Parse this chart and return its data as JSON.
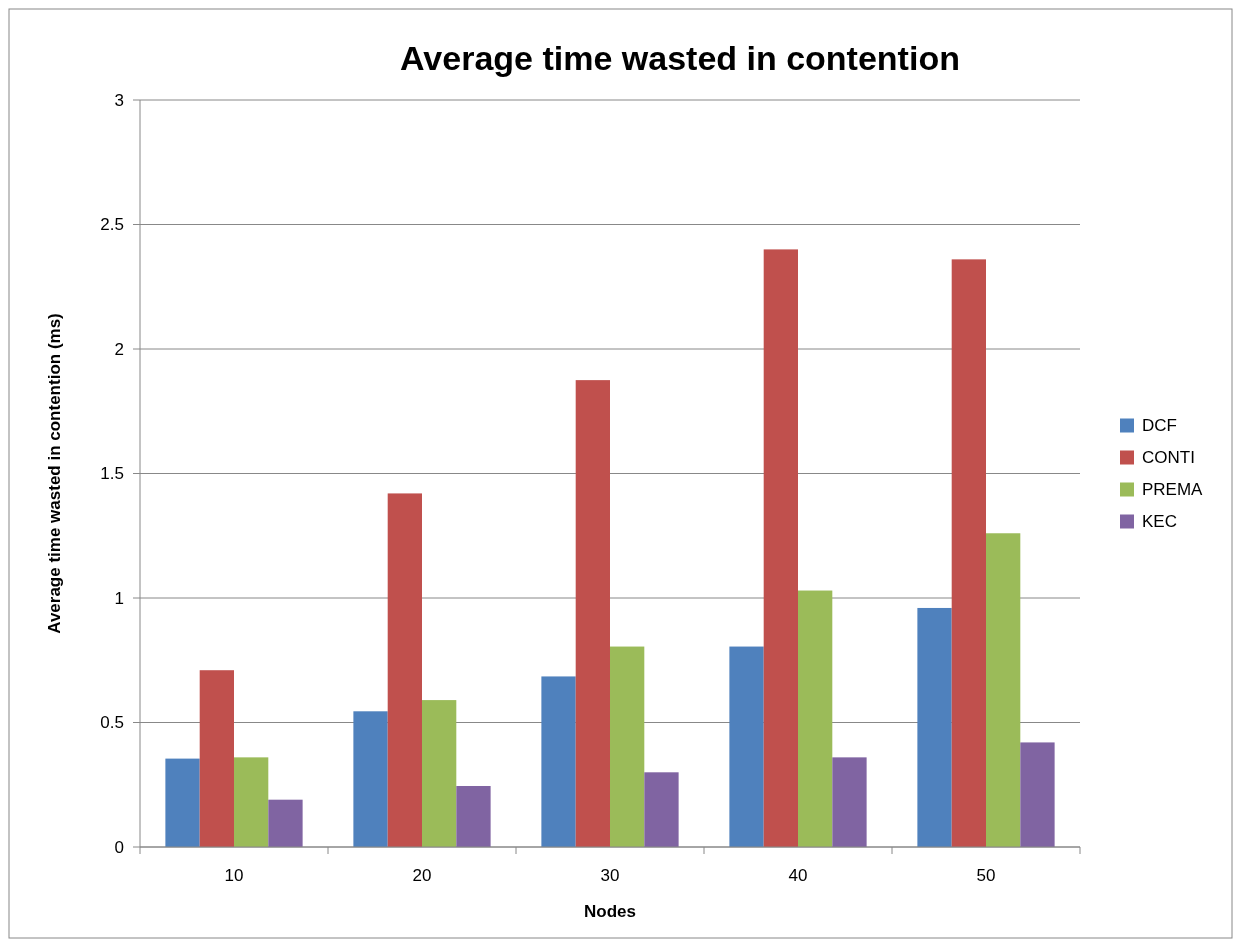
{
  "chart_data": {
    "type": "bar",
    "title": "Average time wasted in contention",
    "xlabel": "Nodes",
    "ylabel": "Average time wasted in contention (ms)",
    "categories": [
      "10",
      "20",
      "30",
      "40",
      "50"
    ],
    "series": [
      {
        "name": "DCF",
        "color": "#4f81bd",
        "values": [
          0.355,
          0.545,
          0.685,
          0.805,
          0.96
        ]
      },
      {
        "name": "CONTI",
        "color": "#c0504d",
        "values": [
          0.71,
          1.42,
          1.875,
          2.4,
          2.36
        ]
      },
      {
        "name": "PREMA",
        "color": "#9bbb59",
        "values": [
          0.36,
          0.59,
          0.805,
          1.03,
          1.26
        ]
      },
      {
        "name": "KEC",
        "color": "#8064a2",
        "values": [
          0.19,
          0.245,
          0.3,
          0.36,
          0.42
        ]
      }
    ],
    "ylim": [
      0,
      3
    ],
    "yticks": [
      0,
      0.5,
      1,
      1.5,
      2,
      2.5,
      3
    ],
    "grid": "y",
    "legend": "right"
  }
}
